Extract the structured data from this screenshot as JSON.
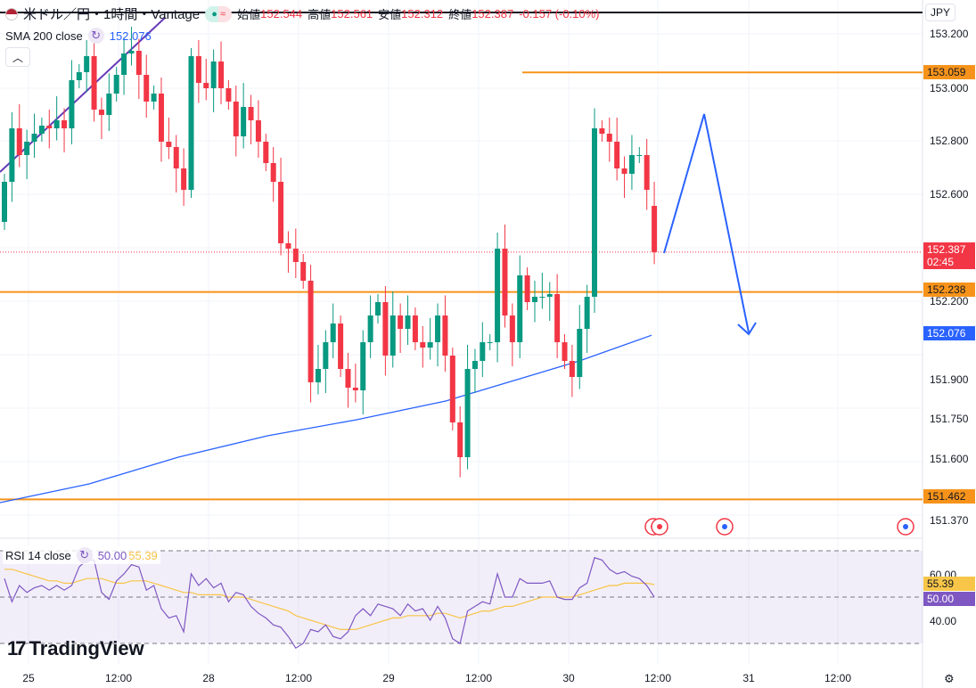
{
  "header": {
    "title": "米ドル／円・1時間・Vantage",
    "open_label": "始値",
    "open": "152.544",
    "high_label": "高値",
    "high": "152.561",
    "low_label": "安値",
    "low": "152.312",
    "close_label": "終値",
    "close": "152.387",
    "change": "-0.157 (-0.10%)"
  },
  "sma": {
    "label": "SMA 200 close",
    "value": "152.076"
  },
  "rsi": {
    "label": "RSI 14 close",
    "value": "50.00",
    "ma_value": "55.39",
    "ticks": [
      "60.00",
      "40.00"
    ]
  },
  "currency": "JPY",
  "price_ticks": [
    "153.200",
    "153.000",
    "152.800",
    "152.600",
    "152.200",
    "151.900",
    "151.750",
    "151.600",
    "151.370"
  ],
  "price_labels": {
    "last": "152.387",
    "countdown": "02:45",
    "level_top": "153.059",
    "level_mid": "152.238",
    "sma": "152.076",
    "level_low": "151.462"
  },
  "time_ticks": [
    "25",
    "12:00",
    "28",
    "12:00",
    "29",
    "12:00",
    "30",
    "12:00",
    "31",
    "12:00"
  ],
  "logo": "TradingView",
  "colors": {
    "up": "#089981",
    "down": "#f23645",
    "sma": "#2962ff",
    "level": "#f7931a",
    "rsi": "#7e57c2",
    "rsi_ma": "#f7c548"
  },
  "chart_data": {
    "type": "candlestick",
    "ylim": [
      151.3,
      153.25
    ],
    "closes": [
      152.65,
      152.85,
      152.75,
      152.8,
      152.83,
      152.86,
      152.85,
      152.88,
      152.85,
      153.03,
      153.06,
      153.12,
      152.92,
      152.9,
      152.98,
      153.05,
      153.13,
      153.14,
      153.05,
      152.95,
      152.98,
      152.8,
      152.78,
      152.7,
      152.62,
      153.12,
      153.02,
      153.0,
      153.1,
      153.0,
      152.95,
      152.82,
      152.93,
      152.88,
      152.8,
      152.72,
      152.65,
      152.42,
      152.4,
      152.35,
      152.28,
      151.9,
      151.95,
      152.05,
      152.12,
      151.95,
      151.88,
      151.87,
      152.05,
      152.15,
      152.2,
      152.0,
      152.15,
      152.1,
      152.15,
      152.05,
      152.03,
      152.05,
      152.15,
      152.0,
      151.75,
      151.62,
      151.95,
      151.98,
      152.05,
      152.05,
      152.4,
      152.15,
      152.05,
      152.3,
      152.2,
      152.22,
      152.22,
      152.23,
      152.05,
      151.98,
      151.92,
      152.1,
      152.22,
      152.85,
      152.83,
      152.8,
      152.7,
      152.68,
      152.75,
      152.75,
      152.62,
      152.387
    ],
    "first_open": 152.5,
    "sma200": [
      151.45,
      151.52,
      151.62,
      151.7,
      151.76,
      151.83,
      151.93,
      151.98,
      152.076
    ],
    "levels": [
      153.059,
      152.238,
      151.462
    ],
    "rsi": [
      58,
      48,
      55,
      52,
      54,
      55,
      53,
      55,
      53,
      55,
      63,
      66,
      66,
      52,
      49,
      57,
      60,
      64,
      63,
      53,
      55,
      45,
      41,
      42,
      35,
      60,
      55,
      58,
      54,
      56,
      48,
      52,
      51,
      46,
      43,
      41,
      38,
      37,
      33,
      28,
      30,
      36,
      35,
      38,
      33,
      32,
      35,
      42,
      45,
      42,
      47,
      46,
      45,
      42,
      47,
      44,
      45,
      40,
      46,
      41,
      32,
      30,
      44,
      46,
      48,
      47,
      60,
      50,
      50,
      58,
      56,
      56,
      56,
      57,
      50,
      49,
      49,
      54,
      56,
      67,
      66,
      62,
      60,
      61,
      59,
      58,
      55,
      50
    ],
    "rsi_ma": [
      62,
      62,
      61,
      60,
      59,
      58,
      57,
      57,
      56,
      56,
      57,
      58,
      58,
      58,
      57,
      56,
      56,
      57,
      57,
      57,
      56,
      55,
      54,
      53,
      52,
      52,
      51,
      51,
      51,
      51,
      50,
      50,
      50,
      49,
      48,
      47,
      46,
      45,
      44,
      42,
      41,
      40,
      39,
      38,
      37,
      36,
      36,
      36,
      37,
      38,
      39,
      40,
      41,
      41,
      42,
      42,
      42,
      42,
      43,
      43,
      42,
      41,
      42,
      43,
      44,
      44,
      45,
      46,
      46,
      47,
      48,
      49,
      50,
      50,
      50,
      50,
      50,
      51,
      52,
      53,
      54,
      55,
      55,
      56,
      56,
      56,
      56,
      55.39
    ]
  }
}
